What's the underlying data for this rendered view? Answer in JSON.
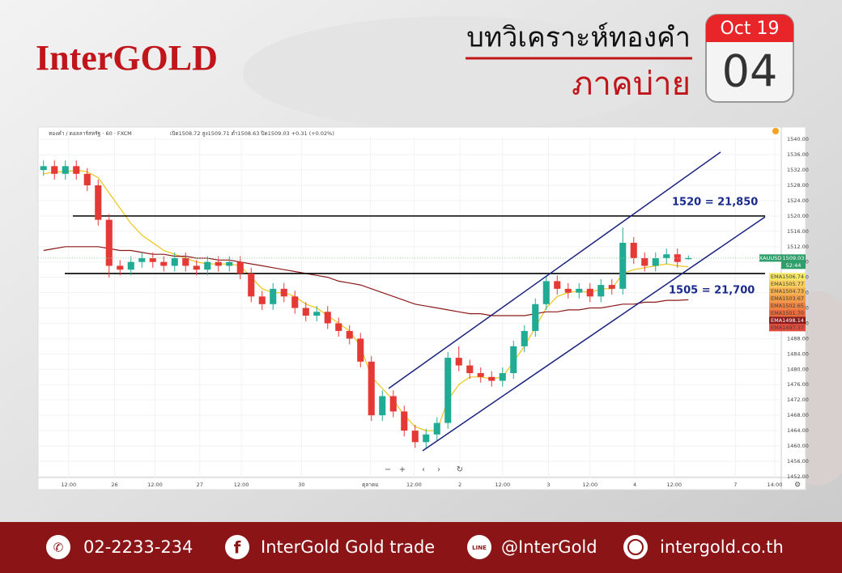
{
  "header": {
    "logo": "InterGOLD",
    "title": "บทวิเคราะห์ทองคำ",
    "subtitle": "ภาคบ่าย",
    "date_month": "Oct 19",
    "date_day": "04"
  },
  "chart_data": {
    "type": "candlestick",
    "symbol": "ทองคำ / ดอลลาร์สหรัฐ · 60 · FXCM",
    "ohlc_text": "เปิด1508.72 สูง1509.71 ต่ำ1508.63 ปิด1509.03 +0.31 (+0.02%)",
    "open": [
      1532,
      1533,
      1531,
      1533,
      1531,
      1528,
      1519,
      1507,
      1506,
      1508,
      1509,
      1508,
      1507,
      1509,
      1507,
      1506,
      1508,
      1507,
      1508,
      1505,
      1499,
      1497,
      1501,
      1499,
      1496,
      1494,
      1495,
      1492,
      1490,
      1488,
      1482,
      1468,
      1473,
      1469,
      1464,
      1461,
      1463,
      1466,
      1483,
      1481,
      1479,
      1478,
      1477,
      1479,
      1486,
      1490,
      1497,
      1503,
      1501,
      1500,
      1501,
      1499,
      1502,
      1501,
      1513,
      1509,
      1507,
      1509,
      1510,
      1508.72
    ],
    "high": [
      1534.5,
      1534.5,
      1534.5,
      1534.5,
      1532.5,
      1529.5,
      1520.5,
      1508.5,
      1509.5,
      1510.5,
      1510.5,
      1509.5,
      1510.5,
      1510.5,
      1508.5,
      1509.5,
      1509.5,
      1509.5,
      1509.5,
      1506.5,
      1500.5,
      1502.5,
      1502.5,
      1500.5,
      1497.5,
      1496.5,
      1496.5,
      1493.5,
      1491.5,
      1489.5,
      1483.5,
      1474.5,
      1474.5,
      1470.5,
      1465.5,
      1464.5,
      1467.5,
      1484.5,
      1486,
      1482.5,
      1480.5,
      1479.5,
      1480.5,
      1487.5,
      1491.5,
      1498.5,
      1504.5,
      1504.5,
      1502.5,
      1502.5,
      1502.5,
      1503.5,
      1503.5,
      1517,
      1514.5,
      1510.5,
      1510.5,
      1511.5,
      1511.5,
      1509.71
    ],
    "low": [
      1530.5,
      1529.5,
      1529.5,
      1529.5,
      1526.5,
      1517.5,
      1504,
      1504.5,
      1504.5,
      1506.5,
      1506.5,
      1505.5,
      1505.5,
      1505.5,
      1504.5,
      1504.5,
      1505.5,
      1505.5,
      1503.5,
      1497.5,
      1495.5,
      1495.5,
      1497.5,
      1494.5,
      1492.5,
      1492.5,
      1490.5,
      1488.5,
      1486.5,
      1480.5,
      1466.5,
      1466.5,
      1467.5,
      1462.5,
      1459.5,
      1459.5,
      1461.5,
      1464.5,
      1479.5,
      1477.5,
      1476.5,
      1475.5,
      1475.5,
      1477.5,
      1484.5,
      1488.5,
      1495.5,
      1499.5,
      1498.5,
      1498.5,
      1497.5,
      1497.5,
      1499.5,
      1499.5,
      1507.5,
      1505.5,
      1505.5,
      1507.5,
      1506.5,
      1508.63
    ],
    "close": [
      1533,
      1531,
      1533,
      1531,
      1528,
      1519,
      1507,
      1506,
      1508,
      1509,
      1508,
      1507,
      1509,
      1507,
      1506,
      1508,
      1507,
      1508,
      1505,
      1499,
      1497,
      1501,
      1499,
      1496,
      1494,
      1495,
      1492,
      1490,
      1488,
      1482,
      1468,
      1473,
      1469,
      1464,
      1461,
      1463,
      1466,
      1483,
      1481,
      1479,
      1478,
      1477,
      1479,
      1486,
      1490,
      1497,
      1503,
      1501,
      1500,
      1501,
      1499,
      1502,
      1501,
      1513,
      1509,
      1507,
      1509,
      1510,
      1508,
      1509.03
    ],
    "up_color": "#22ab94",
    "down_color": "#e53935",
    "ema": [
      {
        "name": "EMA",
        "color": "#f0c419",
        "values": [
          1531,
          1531.5,
          1531.5,
          1532,
          1531.5,
          1530,
          1526,
          1522,
          1518,
          1515,
          1513,
          1511,
          1510,
          1509,
          1508,
          1507.5,
          1507.5,
          1507.5,
          1507,
          1504,
          1501,
          1500,
          1500,
          1499,
          1497,
          1496,
          1494,
          1492,
          1490,
          1486,
          1478,
          1475,
          1472,
          1468,
          1465,
          1464,
          1464,
          1472,
          1476,
          1478,
          1478,
          1477.5,
          1478,
          1482,
          1486,
          1491,
          1496,
          1499,
          1500,
          1500.5,
          1500,
          1501,
          1501,
          1505,
          1506,
          1506.5,
          1507,
          1507.5,
          1507,
          1506.74
        ]
      },
      {
        "name": "EMA",
        "color": "#8b1a1a",
        "values": [
          1511,
          1511.5,
          1512,
          1512,
          1512,
          1512,
          1511.5,
          1511,
          1511,
          1510.5,
          1510,
          1510,
          1509.5,
          1509.5,
          1509,
          1509,
          1508.5,
          1508.5,
          1508,
          1507.5,
          1507,
          1506.5,
          1506,
          1505.5,
          1505,
          1504.5,
          1504,
          1503,
          1502.5,
          1502,
          1501,
          1500,
          1499,
          1498,
          1497,
          1496.5,
          1496,
          1495.5,
          1495,
          1494.5,
          1494.5,
          1494,
          1494,
          1494,
          1494,
          1494.5,
          1495,
          1495,
          1495.5,
          1495.5,
          1496,
          1496,
          1496.5,
          1497,
          1497,
          1497.5,
          1497.5,
          1498,
          1498,
          1498.14
        ]
      }
    ],
    "ema_tags": [
      {
        "name": "EMA",
        "value": 1506.74,
        "label": "1506.74",
        "color": "#f5e663"
      },
      {
        "name": "EMA",
        "value": 1505.77,
        "label": "1505.77",
        "color": "#f7cf5a"
      },
      {
        "name": "EMA",
        "value": 1504.73,
        "label": "1504.73",
        "color": "#f5b14e"
      },
      {
        "name": "EMA",
        "value": 1503.67,
        "label": "1503.67",
        "color": "#f29a45"
      },
      {
        "name": "EMA",
        "value": 1502.65,
        "label": "1502.65",
        "color": "#ef8340"
      },
      {
        "name": "EMA",
        "value": 1501.7,
        "label": "1501.70",
        "color": "#ea6b3b"
      },
      {
        "name": "EMA",
        "value": 1498.14,
        "label": "1498.14",
        "color": "#8b1a1a"
      },
      {
        "name": "EMA",
        "value": 1497.37,
        "label": "1497.37",
        "color": "#e04a3a"
      }
    ],
    "current_price": {
      "name": "XAUUSD",
      "value": 1509.03,
      "countdown": "52:44"
    },
    "annotations": [
      {
        "text": "1520 = 21,850",
        "value": 1520
      },
      {
        "text": "1505 = 21,700",
        "value": 1505
      }
    ],
    "ylim": [
      1448.6,
      1543.2
    ],
    "yticks": [
      {
        "value": 1540,
        "label": "1540.00"
      },
      {
        "value": 1536,
        "label": "1536.00"
      },
      {
        "value": 1532,
        "label": "1532.00"
      },
      {
        "value": 1528,
        "label": "1528.00"
      },
      {
        "value": 1524,
        "label": "1524.00"
      },
      {
        "value": 1520,
        "label": "1520.00"
      },
      {
        "value": 1516,
        "label": "1516.00"
      },
      {
        "value": 1512,
        "label": "1512.00"
      },
      {
        "value": 1508,
        "label": "1508.00"
      },
      {
        "value": 1504,
        "label": "1504.00"
      },
      {
        "value": 1500,
        "label": "1500.00"
      },
      {
        "value": 1496,
        "label": "1496.00"
      },
      {
        "value": 1492,
        "label": "1492.00"
      },
      {
        "value": 1488,
        "label": "1488.00"
      },
      {
        "value": 1484,
        "label": "1484.00"
      },
      {
        "value": 1480,
        "label": "1480.00"
      },
      {
        "value": 1476,
        "label": "1476.00"
      },
      {
        "value": 1472,
        "label": "1472.00"
      },
      {
        "value": 1468,
        "label": "1468.00"
      },
      {
        "value": 1464,
        "label": "1464.00"
      },
      {
        "value": 1460,
        "label": "1460.00"
      },
      {
        "value": 1456,
        "label": "1456.00"
      },
      {
        "value": 1452,
        "label": "1452.00"
      }
    ],
    "xlim": [
      -0.5,
      67.5
    ],
    "xticks": [
      {
        "value": 2.3,
        "label": "12:00"
      },
      {
        "value": 6.5,
        "label": "26"
      },
      {
        "value": 10.2,
        "label": "12:00"
      },
      {
        "value": 14.3,
        "label": "27"
      },
      {
        "value": 18.1,
        "label": "12:00"
      },
      {
        "value": 23.6,
        "label": "30"
      },
      {
        "value": 29.9,
        "label": "ตุลาคม"
      },
      {
        "value": 33.9,
        "label": "12:00"
      },
      {
        "value": 38.1,
        "label": "2"
      },
      {
        "value": 42,
        "label": "12:00"
      },
      {
        "value": 46.2,
        "label": "3"
      },
      {
        "value": 50,
        "label": "12:00"
      },
      {
        "value": 54.1,
        "label": "4"
      },
      {
        "value": 57.7,
        "label": "12:00"
      },
      {
        "value": 63.3,
        "label": "7"
      },
      {
        "value": 66.9,
        "label": "14:00"
      }
    ],
    "grid": true
  },
  "footer": {
    "phone": "02-2233-234",
    "facebook": "InterGold Gold trade",
    "line": "@InterGold",
    "website": "intergold.co.th"
  }
}
